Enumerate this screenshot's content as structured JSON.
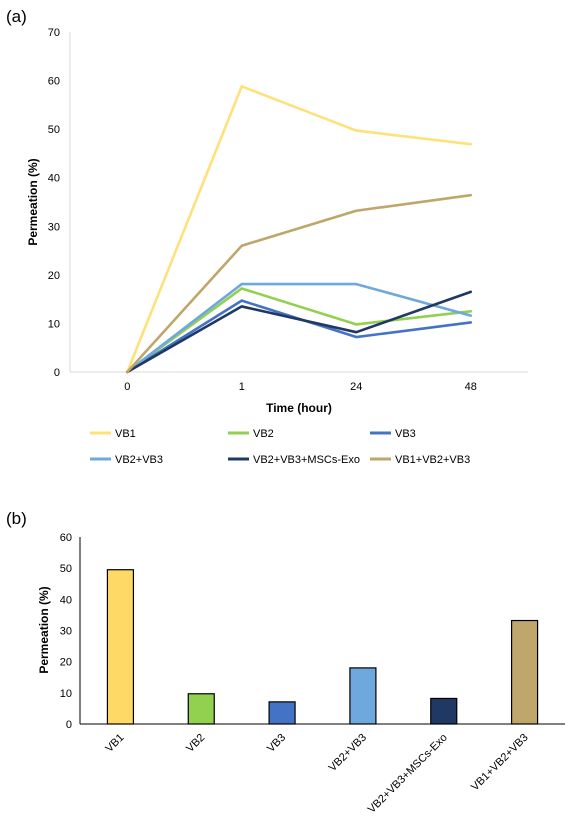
{
  "chart_data": [
    {
      "panel_label": "(a)",
      "type": "line",
      "categories": [
        "0",
        "1",
        "24",
        "48"
      ],
      "xlabel": "Time (hour)",
      "ylabel": "Permeation (%)",
      "ylim": [
        0,
        70
      ],
      "yticks": [
        0,
        10,
        20,
        30,
        40,
        50,
        60,
        70
      ],
      "grid": false,
      "legend_position": "bottom",
      "series": [
        {
          "name": "VB1",
          "color": "#FFE17A",
          "values": [
            0,
            58.8,
            49.7,
            46.9
          ]
        },
        {
          "name": "VB2",
          "color": "#92D050",
          "values": [
            0,
            17.2,
            9.8,
            12.5
          ]
        },
        {
          "name": "VB3",
          "color": "#4472C4",
          "values": [
            0,
            14.7,
            7.2,
            10.2
          ]
        },
        {
          "name": "VB2+VB3",
          "color": "#6FA8DC",
          "values": [
            0,
            18.1,
            18.1,
            11.6
          ]
        },
        {
          "name": "VB2+VB3+MSCs-Exo",
          "color": "#1F3864",
          "values": [
            0,
            13.5,
            8.2,
            16.5
          ]
        },
        {
          "name": "VB1+VB2+VB3",
          "color": "#BFA66A",
          "values": [
            0,
            26.0,
            33.2,
            36.4
          ]
        }
      ]
    },
    {
      "panel_label": "(b)",
      "type": "bar",
      "categories": [
        "VB1",
        "VB2",
        "VB3",
        "VB2+VB3",
        "VB2+VB3+MSCs-Exo",
        "VB1+VB2+VB3"
      ],
      "values": [
        49.5,
        9.7,
        7.1,
        18.0,
        8.2,
        33.2
      ],
      "colors": [
        "#FFD966",
        "#92D050",
        "#4472C4",
        "#6FA8DC",
        "#1F3864",
        "#BFA66A"
      ],
      "ylabel": "Permeation (%)",
      "ylim": [
        0,
        60
      ],
      "yticks": [
        0,
        10,
        20,
        30,
        40,
        50,
        60
      ],
      "grid": false
    }
  ]
}
